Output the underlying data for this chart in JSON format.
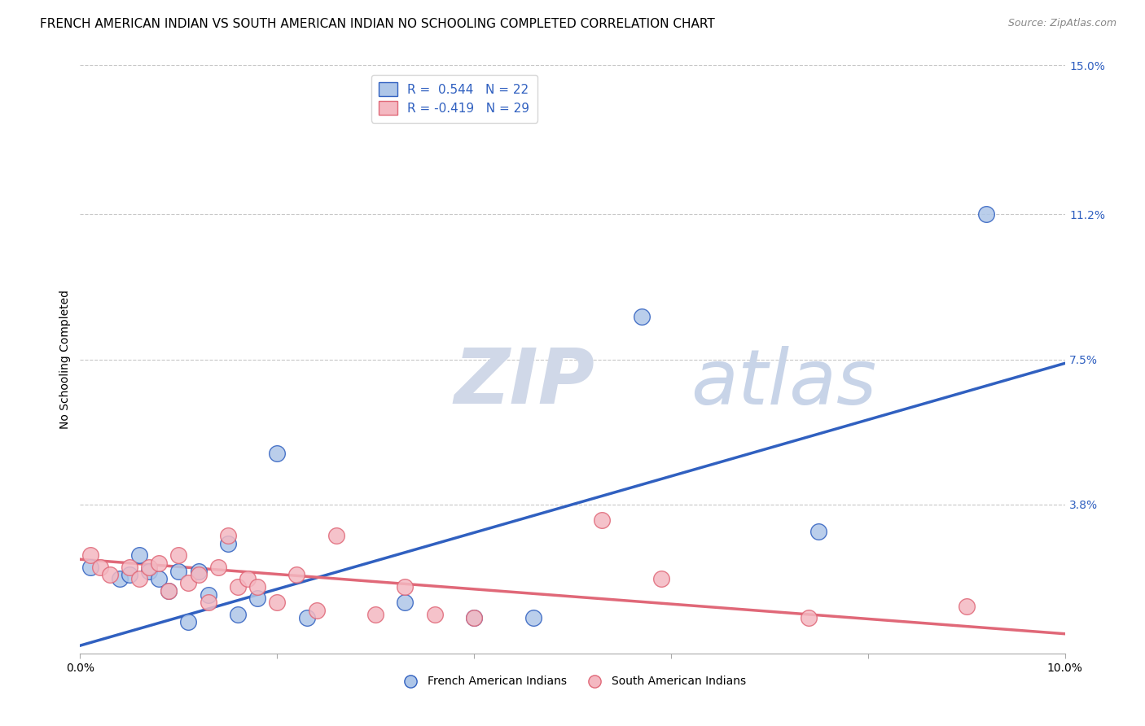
{
  "title": "FRENCH AMERICAN INDIAN VS SOUTH AMERICAN INDIAN NO SCHOOLING COMPLETED CORRELATION CHART",
  "source": "Source: ZipAtlas.com",
  "ylabel": "No Schooling Completed",
  "xlim": [
    0.0,
    0.1
  ],
  "ylim": [
    0.0,
    0.15
  ],
  "ytick_positions": [
    0.0,
    0.038,
    0.075,
    0.112,
    0.15
  ],
  "yticklabels_right": [
    "",
    "3.8%",
    "7.5%",
    "11.2%",
    "15.0%"
  ],
  "legend_blue_label": "R =  0.544   N = 22",
  "legend_pink_label": "R = -0.419   N = 29",
  "legend_foot_blue": "French American Indians",
  "legend_foot_pink": "South American Indians",
  "blue_color": "#aec6e8",
  "pink_color": "#f4b8c1",
  "blue_line_color": "#3060c0",
  "pink_line_color": "#e06878",
  "watermark_zip": "ZIP",
  "watermark_atlas": "atlas",
  "background_color": "#ffffff",
  "grid_color": "#c8c8c8",
  "blue_x": [
    0.001,
    0.004,
    0.005,
    0.006,
    0.007,
    0.008,
    0.009,
    0.01,
    0.011,
    0.012,
    0.013,
    0.015,
    0.016,
    0.018,
    0.02,
    0.023,
    0.033,
    0.04,
    0.046,
    0.057,
    0.075,
    0.092
  ],
  "blue_y": [
    0.022,
    0.019,
    0.02,
    0.025,
    0.021,
    0.019,
    0.016,
    0.021,
    0.008,
    0.021,
    0.015,
    0.028,
    0.01,
    0.014,
    0.051,
    0.009,
    0.013,
    0.009,
    0.009,
    0.086,
    0.031,
    0.112
  ],
  "pink_x": [
    0.001,
    0.002,
    0.003,
    0.005,
    0.006,
    0.007,
    0.008,
    0.009,
    0.01,
    0.011,
    0.012,
    0.013,
    0.014,
    0.015,
    0.016,
    0.017,
    0.018,
    0.02,
    0.022,
    0.024,
    0.026,
    0.03,
    0.033,
    0.036,
    0.04,
    0.053,
    0.059,
    0.074,
    0.09
  ],
  "pink_y": [
    0.025,
    0.022,
    0.02,
    0.022,
    0.019,
    0.022,
    0.023,
    0.016,
    0.025,
    0.018,
    0.02,
    0.013,
    0.022,
    0.03,
    0.017,
    0.019,
    0.017,
    0.013,
    0.02,
    0.011,
    0.03,
    0.01,
    0.017,
    0.01,
    0.009,
    0.034,
    0.019,
    0.009,
    0.012
  ],
  "blue_line_start_y": 0.002,
  "blue_line_end_y": 0.074,
  "pink_line_start_y": 0.024,
  "pink_line_end_y": 0.005,
  "title_fontsize": 11,
  "source_fontsize": 9,
  "axis_fontsize": 10,
  "tick_fontsize": 10,
  "legend_fontsize": 11
}
